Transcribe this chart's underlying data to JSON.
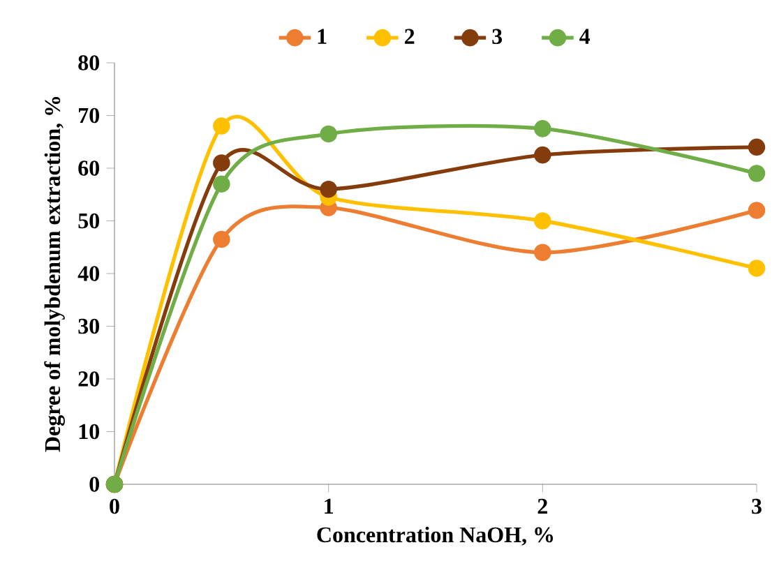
{
  "chart_data": {
    "type": "line",
    "xlabel": "Concentration NaOH, %",
    "ylabel": "Degree of molybdenum extraction, %",
    "x": [
      0,
      0.5,
      1,
      2,
      3
    ],
    "series": [
      {
        "name": "1",
        "color": "#ed7d31",
        "values": [
          0,
          46.5,
          52.5,
          44,
          52
        ]
      },
      {
        "name": "2",
        "color": "#ffc000",
        "values": [
          0,
          68,
          54.5,
          50,
          41
        ]
      },
      {
        "name": "3",
        "color": "#843c0c",
        "values": [
          0,
          61,
          56,
          62.5,
          64
        ]
      },
      {
        "name": "4",
        "color": "#70ad47",
        "values": [
          0,
          57,
          66.5,
          67.5,
          59
        ]
      }
    ],
    "xlim": [
      0,
      3
    ],
    "xticks": [
      0,
      1,
      2,
      3
    ],
    "ylim": [
      0,
      80
    ],
    "yticks": [
      0,
      10,
      20,
      30,
      40,
      50,
      60,
      70,
      80
    ],
    "legend": "top",
    "marker": "circle",
    "grid": false
  }
}
